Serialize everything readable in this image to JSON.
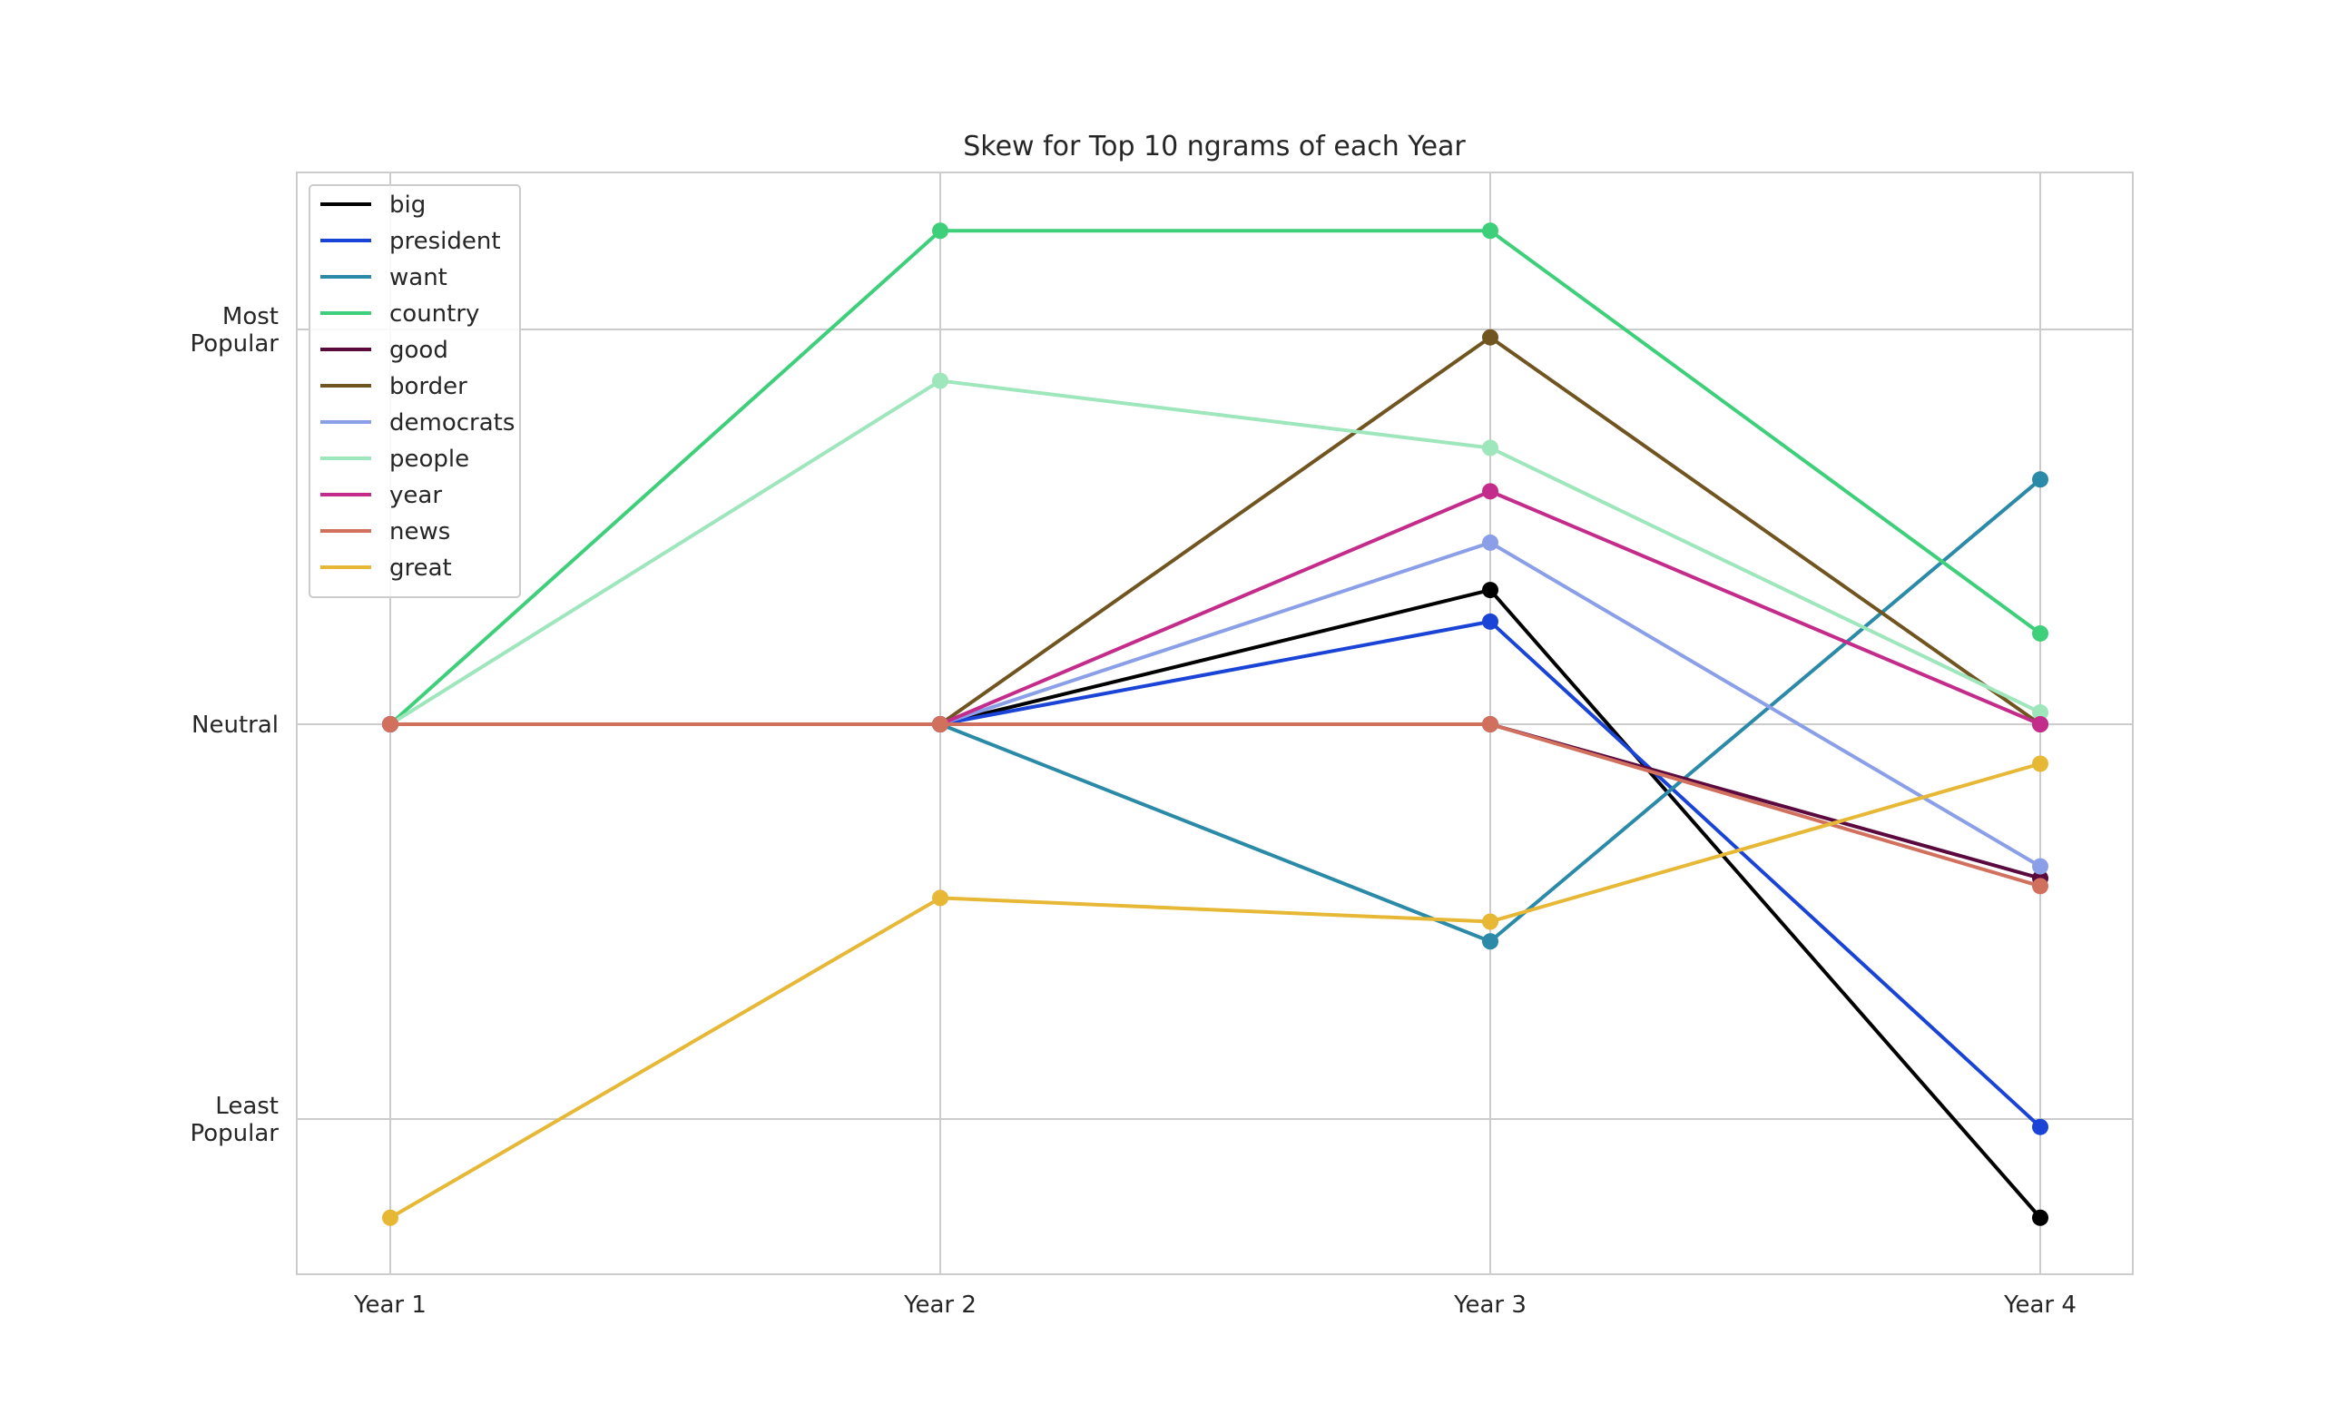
{
  "chart_data": {
    "type": "line",
    "title": "Skew for Top 10 ngrams of each Year",
    "xlabel": "",
    "ylabel": "",
    "categories": [
      "Year 1",
      "Year 2",
      "Year 3",
      "Year 4"
    ],
    "y_ticks": [
      {
        "value": 1,
        "label": "Most\nPopular"
      },
      {
        "value": 0,
        "label": "Neutral"
      },
      {
        "value": -1,
        "label": "Least\nPopular"
      }
    ],
    "ylim": [
      -1.4,
      1.4
    ],
    "grid": true,
    "legend_position": "top-left",
    "series": [
      {
        "name": "big",
        "color": "#000000",
        "values": [
          0,
          0,
          0.34,
          -1.25
        ]
      },
      {
        "name": "president",
        "color": "#1a44d6",
        "values": [
          0,
          0,
          0.26,
          -1.02
        ]
      },
      {
        "name": "want",
        "color": "#2a8aa8",
        "values": [
          0,
          0,
          -0.55,
          0.62
        ]
      },
      {
        "name": "country",
        "color": "#3ecf7a",
        "values": [
          0,
          1.25,
          1.25,
          0.23
        ]
      },
      {
        "name": "good",
        "color": "#5a0a3e",
        "values": [
          0,
          0,
          0,
          -0.39
        ]
      },
      {
        "name": "border",
        "color": "#705520",
        "values": [
          0,
          0,
          0.98,
          0
        ]
      },
      {
        "name": "democrats",
        "color": "#8a9fe8",
        "values": [
          0,
          0,
          0.46,
          -0.36
        ]
      },
      {
        "name": "people",
        "color": "#9ee6bc",
        "values": [
          0,
          0.87,
          0.7,
          0.03
        ]
      },
      {
        "name": "year",
        "color": "#c42c8c",
        "values": [
          0,
          0,
          0.59,
          0
        ]
      },
      {
        "name": "news",
        "color": "#d2705e",
        "values": [
          0,
          0,
          0,
          -0.41
        ]
      },
      {
        "name": "great",
        "color": "#e6b836",
        "values": [
          -1.25,
          -0.44,
          -0.5,
          -0.1
        ]
      }
    ]
  }
}
